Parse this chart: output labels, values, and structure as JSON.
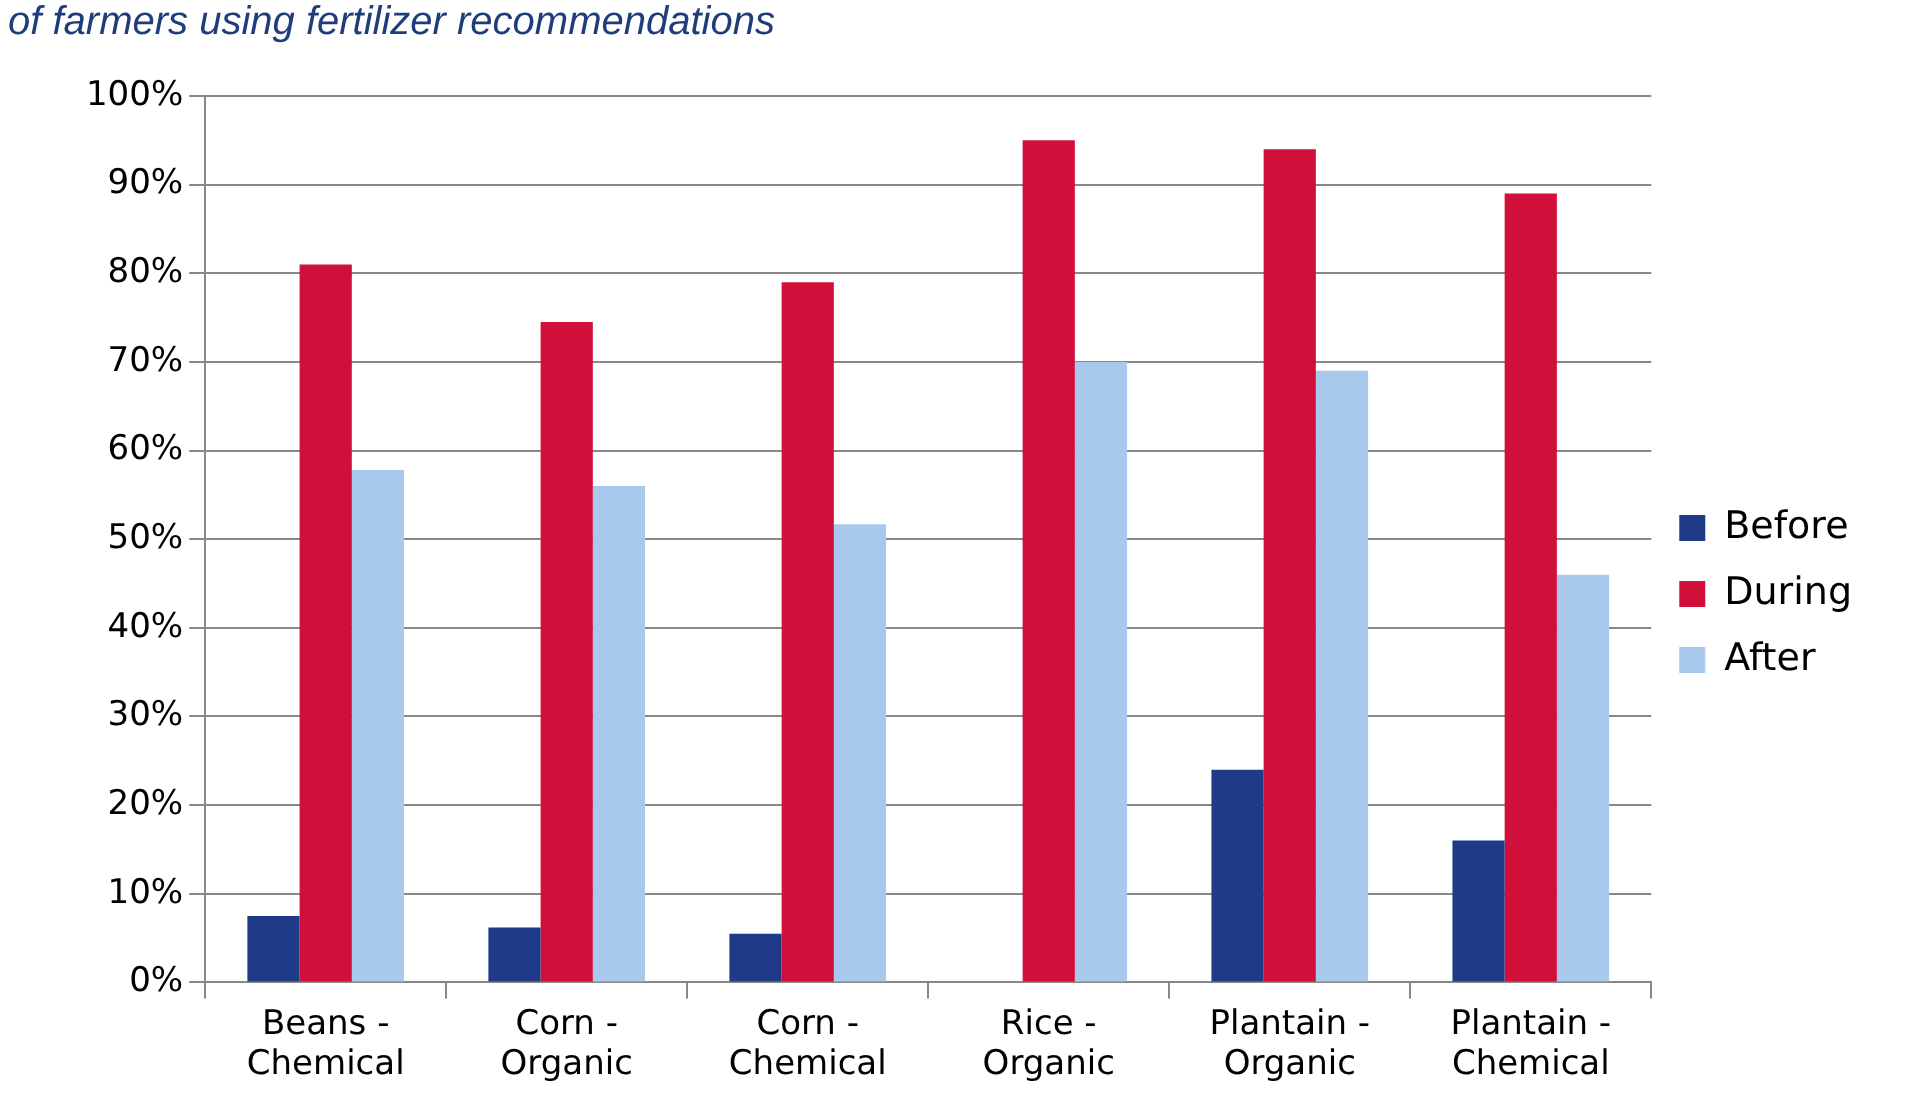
{
  "chart_data": {
    "type": "bar",
    "title": "of farmers using fertilizer recommendations",
    "categories": [
      "Beans - Chemical",
      "Corn - Organic",
      "Corn - Chemical",
      "Rice - Organic",
      "Plantain - Organic",
      "Plantain - Chemical"
    ],
    "series": [
      {
        "name": "Before",
        "color": "#1f3a87",
        "values": [
          7.5,
          6.2,
          5.5,
          0,
          24,
          16
        ]
      },
      {
        "name": "During",
        "color": "#d0103a",
        "values": [
          81,
          74.5,
          79,
          95,
          94,
          89
        ]
      },
      {
        "name": "After",
        "color": "#a8c8ec",
        "values": [
          57.8,
          56,
          51.7,
          70,
          69,
          46
        ]
      }
    ],
    "ylim": [
      0,
      100
    ],
    "yticks": [
      {
        "value": 0,
        "label": "0%"
      },
      {
        "value": 10,
        "label": "10%"
      },
      {
        "value": 20,
        "label": "20%"
      },
      {
        "value": 30,
        "label": "30%"
      },
      {
        "value": 40,
        "label": "40%"
      },
      {
        "value": 50,
        "label": "50%"
      },
      {
        "value": 60,
        "label": "60%"
      },
      {
        "value": 70,
        "label": "70%"
      },
      {
        "value": 80,
        "label": "80%"
      },
      {
        "value": 90,
        "label": "90%"
      },
      {
        "value": 100,
        "label": "100%"
      }
    ],
    "grid": "y",
    "legend": "right"
  }
}
